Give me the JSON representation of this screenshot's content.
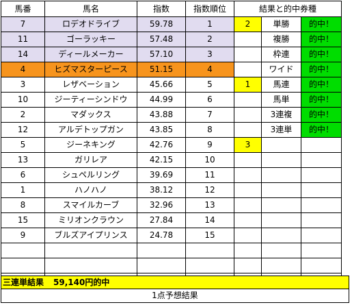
{
  "headers": {
    "num": "馬番",
    "name": "馬名",
    "index": "指数",
    "rank": "指数順位",
    "result": "結果と的中券種"
  },
  "rows": [
    {
      "num": "7",
      "name": "ロデオドライブ",
      "index": "59.78",
      "rank": "1",
      "mark": "2",
      "bet": "単勝",
      "hit": "的中！"
    },
    {
      "num": "11",
      "name": "ゴーラッキー",
      "index": "57.48",
      "rank": "2",
      "mark": "",
      "bet": "複勝",
      "hit": "的中！"
    },
    {
      "num": "14",
      "name": "ディールメーカー",
      "index": "57.10",
      "rank": "3",
      "mark": "",
      "bet": "枠連",
      "hit": "的中！"
    },
    {
      "num": "4",
      "name": "ヒズマスターピース",
      "index": "51.15",
      "rank": "4",
      "mark": "",
      "bet": "ワイド",
      "hit": "的中！"
    },
    {
      "num": "3",
      "name": "レザベーション",
      "index": "45.66",
      "rank": "5",
      "mark": "1",
      "bet": "馬連",
      "hit": "的中！"
    },
    {
      "num": "10",
      "name": "ジーティーシンドウ",
      "index": "44.99",
      "rank": "6",
      "mark": "",
      "bet": "馬単",
      "hit": "的中！"
    },
    {
      "num": "2",
      "name": "マダックス",
      "index": "43.88",
      "rank": "7",
      "mark": "",
      "bet": "3連複",
      "hit": "的中！"
    },
    {
      "num": "12",
      "name": "アルデトップガン",
      "index": "43.85",
      "rank": "8",
      "mark": "",
      "bet": "3連単",
      "hit": "的中！"
    },
    {
      "num": "5",
      "name": "ジーネキング",
      "index": "42.76",
      "rank": "9",
      "mark": "3",
      "bet": "",
      "hit": ""
    },
    {
      "num": "13",
      "name": "ガリレア",
      "index": "42.15",
      "rank": "10",
      "mark": "",
      "bet": "",
      "hit": ""
    },
    {
      "num": "6",
      "name": "シュペルリング",
      "index": "39.69",
      "rank": "11",
      "mark": "",
      "bet": "",
      "hit": ""
    },
    {
      "num": "1",
      "name": "ハノハノ",
      "index": "38.12",
      "rank": "12",
      "mark": "",
      "bet": "",
      "hit": ""
    },
    {
      "num": "8",
      "name": "スマイルカーブ",
      "index": "32.96",
      "rank": "13",
      "mark": "",
      "bet": "",
      "hit": ""
    },
    {
      "num": "15",
      "name": "ミリオンクラウン",
      "index": "27.84",
      "rank": "14",
      "mark": "",
      "bet": "",
      "hit": ""
    },
    {
      "num": "9",
      "name": "ブルズアイプリンス",
      "index": "24.78",
      "rank": "15",
      "mark": "",
      "bet": "",
      "hit": ""
    }
  ],
  "result": {
    "label": "三連単結果",
    "amount": "59,140円的中"
  },
  "footer": "1点予想結果",
  "colors": {
    "top_rows": "#e1dcf0",
    "highlight_row": "#f7941d",
    "mark": "#ffff00",
    "hit": "#00dd00",
    "result_bar": "#ffff00"
  }
}
